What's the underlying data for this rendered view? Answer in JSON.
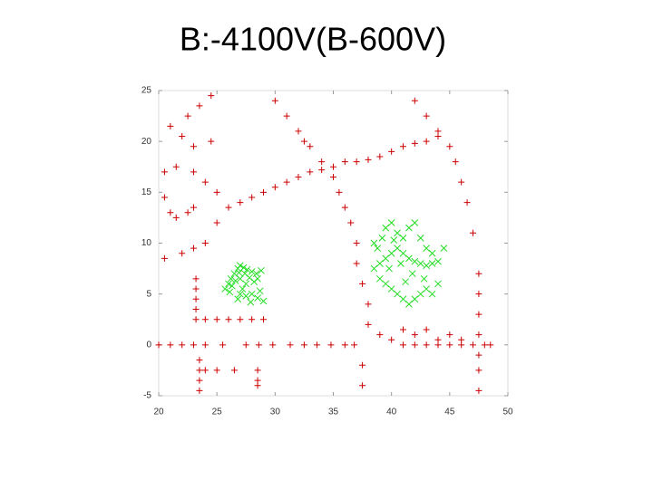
{
  "chart_data": {
    "type": "scatter",
    "title": "B:-4100V(B-600V)",
    "xlim": [
      20,
      50
    ],
    "ylim": [
      -5,
      25
    ],
    "xticks": [
      20,
      25,
      30,
      35,
      40,
      45,
      50
    ],
    "yticks": [
      -5,
      0,
      5,
      10,
      15,
      20,
      25
    ],
    "series": [
      {
        "color": "#cc0000",
        "marker": "plus",
        "x": [
          20,
          21,
          22,
          23,
          24,
          25.5,
          27.5,
          28.6,
          29.8,
          31.3,
          32.5,
          33.6,
          34.8,
          36,
          36.8,
          41,
          42,
          43,
          44,
          45,
          46,
          47,
          48,
          48.5,
          23.5,
          23.5,
          23.5,
          23.5,
          24,
          25,
          26.5,
          28.5,
          28.5,
          28.5,
          23.2,
          23.2,
          23.2,
          23.2,
          23.2,
          24,
          25,
          26,
          27,
          28,
          29,
          20.5,
          22,
          23,
          24,
          25,
          26,
          27,
          28,
          29,
          30,
          31,
          32,
          33,
          34,
          35,
          36,
          37,
          38,
          39,
          40,
          41,
          42,
          43,
          44,
          20.5,
          21.5,
          20.5,
          21,
          21.5,
          22.5,
          23,
          23,
          24,
          25,
          24.5,
          23,
          22,
          21,
          22.5,
          23.5,
          24.5,
          30,
          31,
          32,
          32.5,
          33,
          34,
          35,
          35.5,
          36,
          36.5,
          37,
          37,
          37.5,
          38,
          38,
          37.5,
          37.5,
          42,
          43,
          44,
          45,
          45.5,
          46,
          46.5,
          47,
          47.5,
          47.5,
          47.5,
          47.5,
          47.5,
          47.5,
          47.5,
          39,
          40,
          41,
          42,
          43,
          44,
          45,
          46
        ],
        "values": [
          0,
          0,
          0,
          0,
          0,
          0,
          0,
          0,
          0,
          0,
          0,
          0,
          0,
          0,
          0,
          0,
          0,
          0,
          0,
          0,
          0,
          0,
          0,
          0,
          -1.5,
          -2.5,
          -3.5,
          -4.5,
          -2.5,
          -2.5,
          -2.5,
          -2.5,
          -3.5,
          -4,
          6.5,
          5.5,
          4.5,
          3.5,
          2.5,
          2.5,
          2.5,
          2.5,
          2.5,
          2.5,
          2.5,
          8.5,
          9,
          9.5,
          10,
          12,
          13.5,
          14,
          14.5,
          15,
          15.5,
          16,
          16.5,
          17,
          17.2,
          17.5,
          18,
          18,
          18.2,
          18.5,
          19,
          19.5,
          19.8,
          20,
          20.5,
          17,
          17.5,
          14.5,
          13,
          12.5,
          13,
          13.5,
          17,
          16,
          15,
          20,
          19.5,
          20.5,
          21.5,
          22.5,
          23.5,
          24.5,
          24,
          22.5,
          21,
          20,
          19.5,
          18,
          16.5,
          15,
          13.5,
          12,
          10,
          8,
          6,
          4,
          2,
          -2,
          -4,
          24,
          22.5,
          21,
          19.5,
          18,
          16,
          14,
          11,
          7,
          5,
          3,
          1,
          -1,
          -2.5,
          -4.5,
          1,
          0.5,
          1.5,
          1,
          1.5,
          0.5,
          1,
          0.5
        ]
      },
      {
        "color": "#22dd22",
        "marker": "cross",
        "x": [
          25.7,
          26,
          26.2,
          26.5,
          26.8,
          27,
          27.3,
          27.6,
          28,
          28.4,
          28.8,
          27,
          27.5,
          27.2,
          27,
          26.8,
          27.5,
          28,
          28.5,
          29,
          28.7,
          26.3,
          26.6,
          27.8,
          28.2,
          27.4,
          26.1,
          27.9,
          28.5,
          26.9,
          38.5,
          39,
          39.5,
          40,
          40.5,
          41,
          41.5,
          42,
          42.5,
          43,
          43.5,
          44,
          38.8,
          39.2,
          39.5,
          40,
          40.5,
          41,
          41.5,
          42,
          42.5,
          43,
          43.5,
          44.5,
          39,
          39.5,
          40,
          40.5,
          41,
          41.5,
          42,
          42.5,
          43,
          43.5,
          44,
          39.8,
          40.8,
          41.8,
          42.8,
          38.5,
          40.2,
          41.2
        ],
        "values": [
          5.5,
          6,
          6.5,
          7,
          7.5,
          7.8,
          7.6,
          7.4,
          7.2,
          7,
          7.3,
          6.5,
          6,
          5.5,
          5,
          4.5,
          4.8,
          5,
          4.6,
          4.3,
          5.3,
          5.8,
          6.3,
          6.6,
          6.2,
          7,
          5.2,
          4.2,
          6.5,
          7.1,
          7.5,
          8,
          8.5,
          9,
          9.5,
          9,
          8.5,
          8.2,
          8,
          7.8,
          8,
          8.2,
          9.5,
          10.5,
          11.5,
          12,
          11,
          10.5,
          11.5,
          12,
          10.5,
          9.5,
          9,
          9.5,
          6.5,
          6,
          5.5,
          5,
          4.5,
          4,
          4.5,
          5,
          5.5,
          5,
          6,
          7.5,
          8,
          7,
          6.5,
          10,
          10.3,
          6.2
        ]
      }
    ]
  }
}
